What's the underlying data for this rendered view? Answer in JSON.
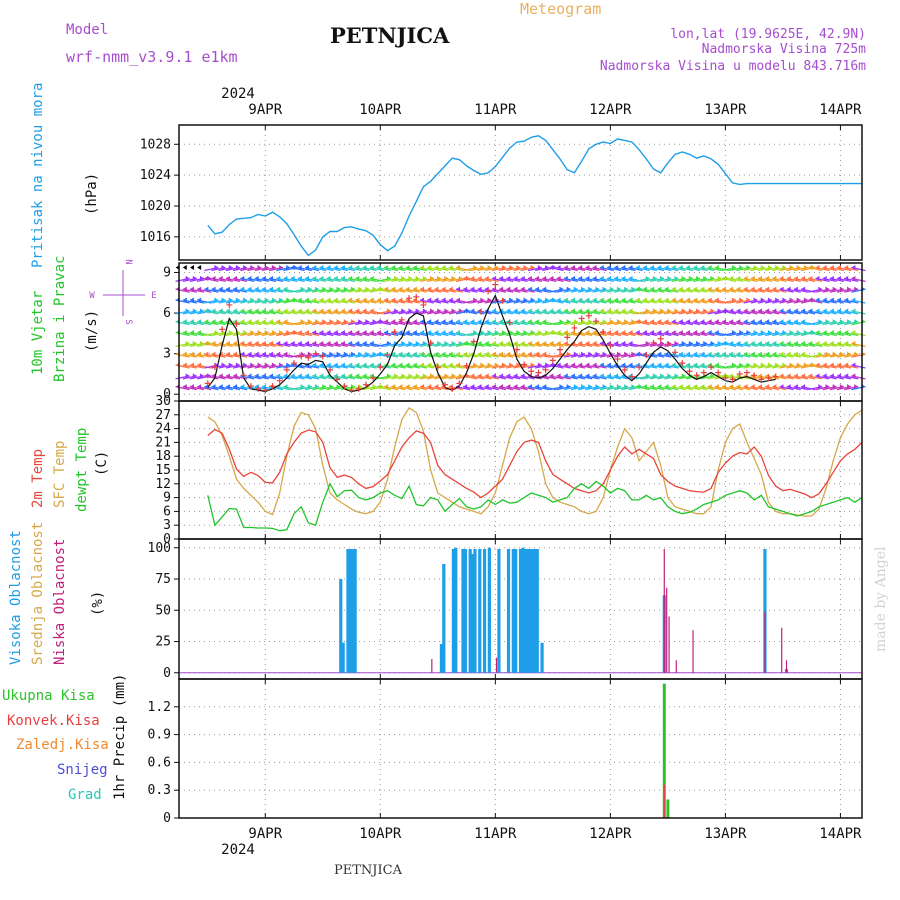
{
  "header": {
    "model_label": "Model",
    "model_name": "wrf-nmm_v3.9.1 e1km",
    "station": "PETNJICA",
    "meteogram": "Meteogram",
    "lonlat": "lon,lat (19.9625E, 42.9N)",
    "altitude": "Nadmorska Visina 725m",
    "model_altitude": "Nadmorska Visina u modelu 843.716m"
  },
  "footer": {
    "station": "PETNJICA",
    "credit": "made by Angel"
  },
  "axis": {
    "year": "2024",
    "days": [
      "9APR",
      "10APR",
      "11APR",
      "12APR",
      "13APR",
      "14APR"
    ],
    "x_range_hours": [
      -24,
      546
    ],
    "day_tick_hours": [
      48,
      144,
      240,
      336,
      432,
      528
    ]
  },
  "colors": {
    "pressure": "#1f9ee8",
    "temp2m": "#e8453c",
    "sfc": "#d6a84a",
    "dew": "#22c42a",
    "cloud_high": "#1f9ee8",
    "cloud_low": "#c0207a",
    "precip_total": "#2dc22d",
    "precip_conv": "#e84040",
    "precip_frozen": "#f08a30",
    "snow": "#4d4dd8",
    "hail": "#28c8b4"
  },
  "chart_data": [
    {
      "type": "line",
      "name": "pressure",
      "ylabel": [
        "Pritisak na nivou mora",
        "(hPa)"
      ],
      "yticks": [
        1016,
        1020,
        1024,
        1028
      ],
      "ylim": [
        1013,
        1030.5
      ],
      "x": [
        0,
        6,
        12,
        18,
        24,
        30,
        36,
        42,
        48,
        54,
        60,
        66,
        72,
        78,
        84,
        90,
        96,
        102,
        108,
        114,
        120,
        126,
        132,
        138,
        144,
        150,
        156,
        162,
        168,
        174,
        180,
        186,
        192,
        198,
        204,
        210,
        216,
        222,
        228,
        234,
        240,
        246,
        252,
        258,
        264,
        270,
        276,
        282,
        288,
        294,
        300,
        306,
        312,
        318,
        324,
        330,
        336,
        342,
        348,
        354,
        360,
        366,
        372,
        378,
        384,
        390,
        396,
        402,
        408,
        414,
        420,
        426,
        432,
        438,
        444,
        450,
        456,
        462,
        468,
        474,
        480,
        486,
        492,
        498,
        504,
        510,
        516,
        522,
        528,
        534,
        540,
        546
      ],
      "values": [
        1017.5,
        1016.4,
        1016.6,
        1017.6,
        1018.3,
        1018.4,
        1018.5,
        1018.9,
        1018.7,
        1019.2,
        1018.6,
        1017.7,
        1016.3,
        1014.8,
        1013.6,
        1014.3,
        1016.0,
        1016.7,
        1016.7,
        1017.2,
        1017.3,
        1017.0,
        1016.8,
        1016.2,
        1015.0,
        1014.2,
        1014.8,
        1016.5,
        1018.7,
        1020.6,
        1022.5,
        1023.2,
        1024.2,
        1025.2,
        1026.2,
        1026.0,
        1025.2,
        1024.6,
        1024.1,
        1024.3,
        1025.1,
        1026.3,
        1027.5,
        1028.3,
        1028.4,
        1028.9,
        1029.1,
        1028.5,
        1027.3,
        1026.1,
        1024.7,
        1024.3,
        1025.8,
        1027.4,
        1028.0,
        1028.3,
        1028.1,
        1028.7,
        1028.5,
        1028.3,
        1027.3,
        1026.1,
        1024.8,
        1024.3,
        1025.6,
        1026.7,
        1027.0,
        1026.7,
        1026.2,
        1026.5,
        1026.1,
        1025.4,
        1024.2,
        1023.0,
        1022.8,
        1022.9,
        1022.9,
        1022.9,
        1022.9,
        1022.9,
        1022.9,
        1022.9,
        1022.9,
        1022.9,
        1022.9,
        1022.9,
        1022.9,
        1022.9,
        1022.9,
        1022.9,
        1022.9,
        1022.9
      ]
    },
    {
      "type": "line",
      "name": "wind",
      "ylabel": [
        "10m Vjetar",
        "Brzina i Pravac",
        "(m/s)"
      ],
      "compass": {
        "n": "N",
        "s": "S",
        "w": "W",
        "e": "E"
      },
      "yticks": [
        0,
        3,
        6,
        9
      ],
      "ylim": [
        -0.5,
        9.7
      ],
      "x": [
        0,
        6,
        12,
        18,
        24,
        30,
        36,
        42,
        48,
        54,
        60,
        66,
        72,
        78,
        84,
        90,
        96,
        102,
        108,
        114,
        120,
        126,
        132,
        138,
        144,
        150,
        156,
        162,
        168,
        174,
        180,
        186,
        192,
        198,
        204,
        210,
        216,
        222,
        228,
        234,
        240,
        246,
        252,
        258,
        264,
        270,
        276,
        282,
        288,
        294,
        300,
        306,
        312,
        318,
        324,
        330,
        336,
        342,
        348,
        354,
        360,
        366,
        372,
        378,
        384,
        390,
        396,
        402,
        408,
        414,
        420,
        426,
        432,
        438,
        444,
        450,
        456,
        462,
        468,
        474
      ],
      "speed": [
        0.5,
        1.2,
        3.6,
        5.6,
        4.8,
        1.2,
        0.4,
        0.3,
        0.2,
        0.4,
        0.7,
        1.2,
        1.8,
        2.3,
        2.2,
        2.5,
        2.4,
        1.4,
        0.9,
        0.4,
        0.2,
        0.3,
        0.5,
        0.9,
        1.5,
        2.2,
        3.6,
        4.2,
        5.6,
        6.0,
        5.8,
        3.1,
        1.6,
        0.5,
        0.3,
        0.6,
        1.6,
        3.0,
        4.9,
        6.3,
        7.3,
        5.8,
        4.4,
        2.6,
        1.7,
        1.3,
        1.2,
        1.4,
        1.9,
        2.6,
        3.3,
        3.9,
        4.7,
        5.0,
        4.8,
        4.0,
        3.0,
        2.1,
        1.4,
        1.0,
        1.5,
        2.3,
        3.1,
        3.5,
        3.2,
        2.6,
        1.9,
        1.4,
        1.1,
        1.3,
        1.6,
        1.3,
        1.0,
        0.9,
        1.2,
        1.3,
        1.1,
        0.9,
        1.0,
        1.1
      ],
      "gust": [
        0.8,
        2.0,
        4.8,
        6.6,
        5.2,
        1.4,
        0.6,
        0.4,
        0.3,
        0.6,
        1.0,
        1.8,
        2.3,
        2.8,
        2.7,
        3.0,
        2.8,
        1.8,
        1.1,
        0.6,
        0.3,
        0.4,
        0.7,
        1.2,
        2.0,
        2.9,
        4.6,
        5.5,
        7.1,
        7.2,
        6.6,
        3.8,
        2.0,
        0.7,
        0.4,
        0.8,
        2.1,
        3.9,
        6.1,
        7.6,
        8.1,
        6.9,
        5.3,
        3.3,
        2.2,
        1.7,
        1.6,
        1.8,
        2.5,
        3.3,
        4.2,
        4.9,
        5.6,
        5.8,
        5.4,
        4.6,
        3.6,
        2.6,
        1.8,
        1.3,
        2.0,
        2.9,
        3.8,
        4.1,
        3.7,
        3.1,
        2.3,
        1.7,
        1.4,
        1.6,
        2.0,
        1.6,
        1.2,
        1.1,
        1.5,
        1.6,
        1.4,
        1.1,
        1.2,
        1.3
      ]
    },
    {
      "type": "line",
      "name": "temperature",
      "ylabel": [
        "2m Temp",
        "SFC Temp",
        "dewpt Temp",
        "(C)"
      ],
      "yticks": [
        0,
        3,
        6,
        9,
        12,
        15,
        18,
        21,
        24,
        27,
        30
      ],
      "ylim": [
        0,
        30
      ],
      "x": [
        0,
        6,
        12,
        18,
        24,
        30,
        36,
        42,
        48,
        54,
        60,
        66,
        72,
        78,
        84,
        90,
        96,
        102,
        108,
        114,
        120,
        126,
        132,
        138,
        144,
        150,
        156,
        162,
        168,
        174,
        180,
        186,
        192,
        198,
        204,
        210,
        216,
        222,
        228,
        234,
        240,
        246,
        252,
        258,
        264,
        270,
        276,
        282,
        288,
        294,
        300,
        306,
        312,
        318,
        324,
        330,
        336,
        342,
        348,
        354,
        360,
        366,
        372,
        378,
        384,
        390,
        396,
        402,
        408,
        414,
        420,
        426,
        432,
        438,
        444,
        450,
        456,
        462,
        468,
        474,
        480,
        486,
        492,
        498,
        504,
        510,
        516,
        522,
        528,
        534,
        540,
        546
      ],
      "t2m": [
        22.5,
        23.8,
        23.0,
        19.5,
        15.2,
        13.6,
        14.5,
        13.8,
        12.3,
        12.2,
        14.5,
        18.5,
        21.0,
        23.0,
        23.7,
        23.3,
        21.0,
        15.5,
        13.4,
        13.9,
        13.4,
        12.0,
        11.0,
        11.4,
        12.6,
        14.0,
        17.0,
        20.0,
        22.0,
        23.5,
        23.0,
        21.0,
        16.0,
        14.0,
        13.0,
        12.0,
        11.0,
        10.2,
        9.0,
        10.0,
        11.5,
        13.0,
        16.0,
        19.0,
        21.0,
        21.5,
        21.0,
        17.0,
        14.0,
        13.0,
        12.0,
        11.0,
        10.5,
        10.0,
        10.5,
        12.0,
        15.0,
        18.0,
        20.0,
        18.5,
        19.5,
        18.5,
        17.5,
        14.0,
        12.5,
        11.5,
        11.0,
        10.5,
        10.3,
        10.2,
        11.0,
        14.5,
        16.5,
        18.0,
        18.8,
        18.5,
        20.0,
        18.0,
        13.8,
        11.5,
        10.5,
        10.8,
        10.3,
        9.8,
        9.0,
        9.8,
        12.0,
        14.5,
        17.0,
        18.5,
        19.5,
        21.0
      ],
      "sfc": [
        26.5,
        25.5,
        22.5,
        18.0,
        13.0,
        11.0,
        9.5,
        8.0,
        6.0,
        5.3,
        10.0,
        18.0,
        24.5,
        27.5,
        27.0,
        24.0,
        16.0,
        10.0,
        8.5,
        7.5,
        6.5,
        5.8,
        5.5,
        6.0,
        8.0,
        13.0,
        20.0,
        26.0,
        28.5,
        27.5,
        23.5,
        15.0,
        10.0,
        9.0,
        8.0,
        7.0,
        6.5,
        6.0,
        5.5,
        7.0,
        10.0,
        16.0,
        22.0,
        25.5,
        26.5,
        24.0,
        19.0,
        12.0,
        9.0,
        8.0,
        7.5,
        7.0,
        6.0,
        5.5,
        6.0,
        9.0,
        15.0,
        20.0,
        24.0,
        22.0,
        17.0,
        19.0,
        21.0,
        16.0,
        9.0,
        7.0,
        6.5,
        6.0,
        5.5,
        5.5,
        7.0,
        15.0,
        21.0,
        24.0,
        25.0,
        21.0,
        17.5,
        14.0,
        8.0,
        6.0,
        5.5,
        5.5,
        5.2,
        5.0,
        5.0,
        6.5,
        11.0,
        17.0,
        22.0,
        25.0,
        27.0,
        28.0
      ],
      "dew": [
        9.5,
        3.0,
        4.8,
        6.6,
        6.5,
        2.5,
        2.5,
        2.4,
        2.4,
        2.3,
        1.8,
        2.0,
        5.5,
        7.0,
        3.5,
        3.0,
        8.0,
        12.0,
        9.2,
        10.5,
        10.6,
        9.0,
        8.5,
        9.0,
        10.0,
        10.5,
        9.5,
        8.8,
        11.5,
        7.5,
        7.2,
        9.0,
        8.5,
        6.0,
        7.5,
        8.8,
        7.0,
        6.5,
        7.0,
        8.5,
        7.5,
        8.5,
        7.8,
        8.0,
        9.0,
        10.0,
        9.5,
        9.0,
        8.0,
        8.5,
        9.0,
        11.0,
        12.0,
        11.0,
        12.5,
        11.5,
        10.0,
        11.0,
        10.5,
        8.5,
        8.5,
        9.5,
        8.5,
        9.0,
        7.0,
        6.0,
        5.5,
        5.8,
        6.5,
        7.5,
        8.0,
        8.5,
        9.5,
        10.0,
        10.5,
        10.0,
        8.5,
        9.5,
        7.0,
        6.5,
        6.0,
        5.5,
        5.0,
        5.5,
        6.0,
        7.0,
        7.5,
        8.0,
        8.5,
        9.0,
        8.0,
        9.0
      ]
    },
    {
      "type": "bar",
      "name": "cloud",
      "ylabel": [
        "Visoka Oblacnost",
        "Srednja Oblacnost",
        "Niska Oblacnost",
        "(%)"
      ],
      "yticks": [
        0,
        25,
        50,
        75,
        100
      ],
      "ylim": [
        -5,
        107
      ],
      "high": {
        "x": [
          111,
          113,
          117,
          119,
          121,
          123,
          195,
          197,
          205,
          207,
          213,
          215,
          219,
          221,
          223,
          227,
          231,
          235,
          243,
          251,
          255,
          257,
          261,
          263,
          265,
          267,
          269,
          271,
          273,
          275,
          279,
          381,
          465,
          483
        ],
        "values": [
          75,
          24,
          99,
          99,
          99,
          99,
          23,
          87,
          99,
          100,
          99,
          99,
          99,
          95,
          99,
          99,
          99,
          100,
          99,
          99,
          99,
          99,
          99,
          100,
          99,
          99,
          99,
          99,
          99,
          99,
          24,
          62,
          99,
          3
        ]
      },
      "low": {
        "x": [
          187,
          241,
          381,
          383,
          385,
          391,
          405,
          465,
          479,
          483
        ],
        "values": [
          11,
          12,
          99,
          68,
          45,
          10,
          34,
          49,
          36,
          10
        ]
      }
    },
    {
      "type": "bar",
      "name": "precipitation",
      "ylabel": [
        "1hr Precip (mm)"
      ],
      "legend": [
        "Ukupna Kisa",
        "Konvek.Kisa",
        "Zaledj.Kisa",
        "Snijeg",
        "Grad"
      ],
      "yticks": [
        0,
        0.3,
        0.6,
        0.9,
        1.2
      ],
      "ylim": [
        0,
        1.5
      ],
      "total": {
        "x": [
          381,
          384
        ],
        "values": [
          1.45,
          0.2
        ]
      },
      "convective": {
        "x": [
          381
        ],
        "values": [
          0.36
        ]
      }
    }
  ]
}
